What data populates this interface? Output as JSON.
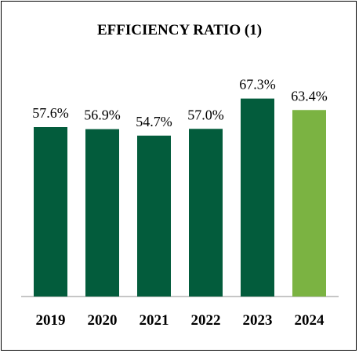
{
  "chart_data": {
    "type": "bar",
    "title": "EFFICIENCY RATIO (1)",
    "categories": [
      "2019",
      "2020",
      "2021",
      "2022",
      "2023",
      "2024"
    ],
    "values": [
      57.6,
      56.9,
      54.7,
      57.0,
      67.3,
      63.4
    ],
    "value_labels": [
      "57.6%",
      "56.9%",
      "54.7%",
      "57.0%",
      "67.3%",
      "63.4%"
    ],
    "bar_colors": [
      "#035c3c",
      "#035c3c",
      "#035c3c",
      "#035c3c",
      "#035c3c",
      "#7bb342"
    ],
    "ylim": [
      0,
      70
    ],
    "grid": false,
    "xlabel": "",
    "ylabel": ""
  }
}
